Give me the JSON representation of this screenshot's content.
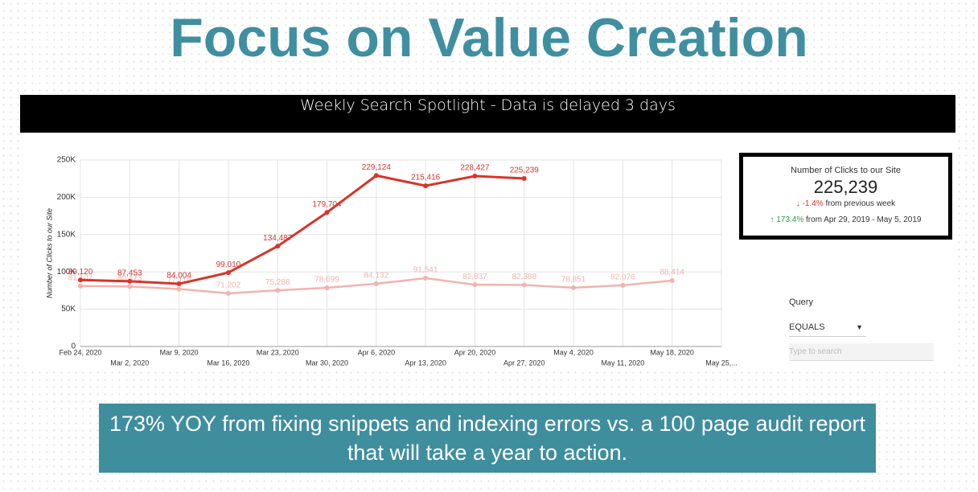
{
  "slide_title": "Focus on Value Creation",
  "banner": "Weekly Search Spotlight - Data is delayed 3 days",
  "chart_data": {
    "type": "line",
    "y_label": "Number of Clicks to our Site",
    "categories": [
      "Feb 24, 2020",
      "Mar 2, 2020",
      "Mar 9, 2020",
      "Mar 16, 2020",
      "Mar 23, 2020",
      "Mar 30, 2020",
      "Apr 6, 2020",
      "Apr 13, 2020",
      "Apr 20, 2020",
      "Apr 27, 2020",
      "May 4, 2020",
      "May 11, 2020",
      "May 18, 2020",
      "May 25,..."
    ],
    "series": [
      {
        "color": "#f2b3ad",
        "values": [
          81102,
          80473,
          77110,
          71202,
          75288,
          78699,
          84132,
          91541,
          82837,
          82388,
          78851,
          82076,
          88414,
          null
        ],
        "value_labels": [
          "81,102",
          "80,473",
          "77,110",
          "71,202",
          "75,288",
          "78,699",
          "84,132",
          "91,541",
          "82,837",
          "82,388",
          "78,851",
          "82,076",
          "88,414",
          null
        ]
      },
      {
        "color": "#d9342b",
        "values": [
          89120,
          87453,
          84004,
          99010,
          134487,
          179704,
          229124,
          215416,
          228427,
          225239,
          null,
          null,
          null,
          null
        ],
        "value_labels": [
          "89,120",
          "87,453",
          "84,004",
          "99,010",
          "134,487",
          "179,704",
          "229,124",
          "215,416",
          "228,427",
          "225,239",
          null,
          null,
          null,
          null
        ]
      }
    ],
    "ylim": [
      0,
      250000
    ],
    "yticks": [
      0,
      {
        "value": 50000,
        "label": "50K"
      },
      {
        "value": 100000,
        "label": "100K"
      },
      {
        "value": 150000,
        "label": "150K"
      },
      {
        "value": 200000,
        "label": "200K"
      },
      {
        "value": 250000,
        "label": "250K"
      }
    ],
    "grid": true
  },
  "scorecard": {
    "title": "Number of Clicks to our Site",
    "value": "225,239",
    "change": "-1.4%",
    "change_text": "from previous week",
    "yoy": "173.4%",
    "yoy_text": "from Apr 29, 2019 - May 5, 2019"
  },
  "filter": {
    "label": "Query",
    "operator": "EQUALS",
    "placeholder": "Type to search"
  },
  "caption": "173% YOY from fixing snippets and indexing errors vs. a 100 page audit report that will take a year to action."
}
